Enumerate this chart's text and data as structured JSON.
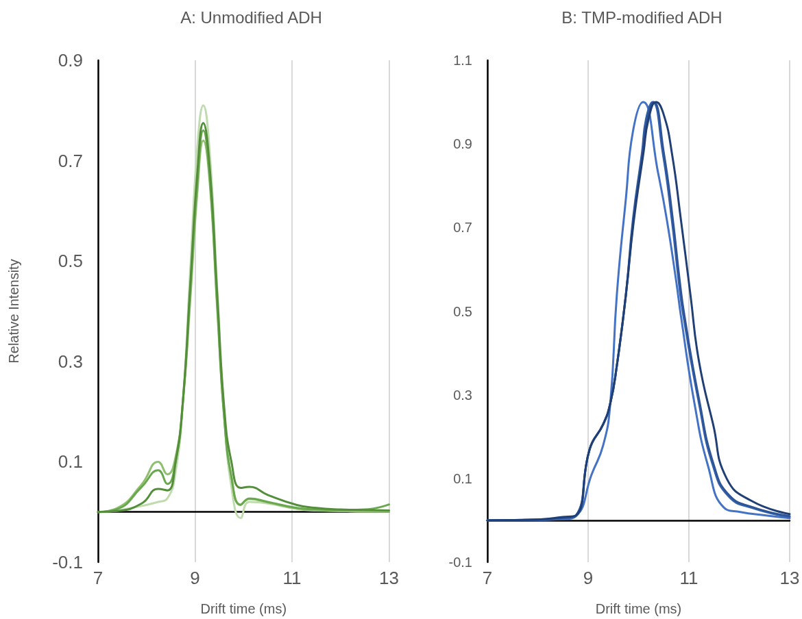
{
  "chart_data": [
    {
      "type": "line",
      "title": "A: Unmodified ADH",
      "xlabel": "Drift time (ms)",
      "ylabel": "Relative Intensity",
      "x": [
        7,
        7.4,
        7.9,
        8.24,
        8.43,
        8.6,
        8.75,
        8.9,
        9.05,
        9.17,
        9.3,
        9.46,
        9.6,
        9.75,
        9.94,
        10.12,
        10.5,
        11.1,
        11.5,
        12,
        12.5,
        13
      ],
      "xlim": [
        7,
        13
      ],
      "xticks": [
        7,
        9,
        11,
        13
      ],
      "ylim": [
        -0.1,
        0.9
      ],
      "yticks": [
        -0.1,
        0.1,
        0.3,
        0.5,
        0.7,
        0.9
      ],
      "grid": "x",
      "series": [
        {
          "color": "#c0dcaf",
          "values": [
            0,
            0.003,
            0.012,
            0.02,
            0.027,
            0.08,
            0.22,
            0.48,
            0.73,
            0.81,
            0.72,
            0.44,
            0.2,
            0.05,
            -0.012,
            0.02,
            0.017,
            0.006,
            0.003,
            0.002,
            0.001,
            0.001
          ]
        },
        {
          "color": "#8fbf6f",
          "values": [
            0,
            0.008,
            0.055,
            0.1,
            0.075,
            0.11,
            0.22,
            0.42,
            0.64,
            0.74,
            0.66,
            0.4,
            0.19,
            0.07,
            0.015,
            0.026,
            0.019,
            0.007,
            0.004,
            0.002,
            0.001,
            0.001
          ]
        },
        {
          "color": "#6aa84f",
          "values": [
            0,
            0.006,
            0.05,
            0.083,
            0.056,
            0.1,
            0.22,
            0.44,
            0.66,
            0.76,
            0.67,
            0.41,
            0.19,
            0.07,
            0.014,
            0.027,
            0.02,
            0.008,
            0.005,
            0.004,
            0.005,
            0.015
          ]
        },
        {
          "color": "#548e3a",
          "values": [
            0,
            0.002,
            0.017,
            0.046,
            0.043,
            0.1,
            0.22,
            0.45,
            0.68,
            0.775,
            0.69,
            0.43,
            0.21,
            0.1,
            0.048,
            0.05,
            0.034,
            0.014,
            0.008,
            0.005,
            0.004,
            0.003
          ]
        }
      ]
    },
    {
      "type": "line",
      "title": "B: TMP-modified ADH",
      "xlabel": "Drift time (ms)",
      "xlim": [
        7,
        13
      ],
      "xticks": [
        7,
        9,
        11,
        13
      ],
      "ylim": [
        -0.1,
        1.1
      ],
      "yticks": [
        -0.1,
        0.1,
        0.3,
        0.5,
        0.7,
        0.9,
        1.1
      ],
      "grid": "x",
      "series": [
        {
          "color": "#4472c4",
          "x": [
            7,
            8,
            8.5,
            8.76,
            9.07,
            9.3,
            9.44,
            9.57,
            9.75,
            9.89,
            10.09,
            10.39,
            10.56,
            10.75,
            10.84,
            11.11,
            11.38,
            11.7,
            12.02,
            12.5,
            13
          ],
          "values": [
            0,
            0.001,
            0.003,
            0.01,
            0.11,
            0.18,
            0.28,
            0.54,
            0.77,
            0.93,
            1.0,
            0.83,
            0.72,
            0.57,
            0.49,
            0.28,
            0.13,
            0.03,
            0.02,
            0.012,
            0.005
          ]
        },
        {
          "color": "#3563b0",
          "x": [
            7,
            8,
            8.5,
            8.76,
            9.03,
            9.3,
            9.44,
            9.57,
            9.75,
            9.89,
            10.07,
            10.15,
            10.28,
            10.48,
            10.66,
            10.8,
            10.89,
            11.2,
            11.48,
            11.79,
            12.25,
            13
          ],
          "values": [
            0,
            0.001,
            0.005,
            0.012,
            0.17,
            0.23,
            0.28,
            0.37,
            0.54,
            0.72,
            0.88,
            0.96,
            1.0,
            0.88,
            0.72,
            0.57,
            0.49,
            0.28,
            0.13,
            0.057,
            0.03,
            0.008
          ]
        },
        {
          "color": "#2f5597",
          "x": [
            7,
            8,
            8.5,
            8.76,
            9.03,
            9.3,
            9.44,
            9.57,
            9.75,
            9.9,
            10.08,
            10.17,
            10.3,
            10.5,
            10.68,
            10.82,
            10.91,
            11.2,
            11.5,
            11.8,
            12.25,
            13
          ],
          "values": [
            0,
            0.002,
            0.006,
            0.012,
            0.17,
            0.23,
            0.28,
            0.37,
            0.54,
            0.72,
            0.88,
            0.96,
            1.0,
            0.88,
            0.72,
            0.57,
            0.49,
            0.29,
            0.13,
            0.06,
            0.032,
            0.01
          ]
        },
        {
          "color": "#203f75",
          "x": [
            7,
            8,
            8.5,
            8.76,
            9.03,
            9.3,
            9.44,
            9.57,
            9.75,
            9.9,
            10.1,
            10.2,
            10.35,
            10.5,
            10.66,
            10.84,
            11.03,
            11.2,
            11.48,
            11.75,
            12.25,
            13
          ],
          "values": [
            0,
            0.002,
            0.008,
            0.012,
            0.17,
            0.23,
            0.28,
            0.37,
            0.54,
            0.71,
            0.88,
            0.96,
            1.0,
            0.97,
            0.88,
            0.72,
            0.54,
            0.38,
            0.23,
            0.1,
            0.046,
            0.015
          ]
        }
      ]
    }
  ]
}
